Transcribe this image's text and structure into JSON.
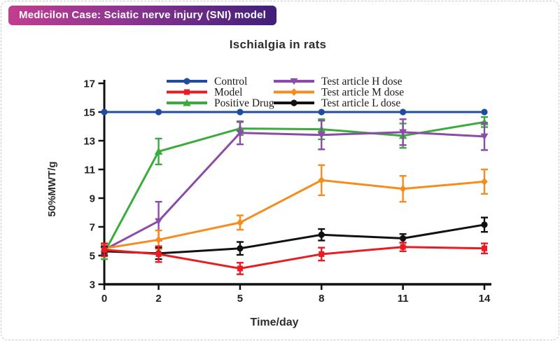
{
  "header": {
    "badge": "Medicilon Case: Sciatic nerve injury (SNI) model",
    "gradient_left": "#c03e90",
    "gradient_right": "#3f1f78",
    "text_color": "#ffffff"
  },
  "chart_data": {
    "type": "line",
    "title": "Ischialgia in rats",
    "xlabel": "Time/day",
    "ylabel": "50%MWT/g",
    "x": [
      0,
      2,
      5,
      8,
      11,
      14
    ],
    "xticks": [
      0,
      2,
      5,
      8,
      11,
      14
    ],
    "yticks": [
      3,
      5,
      7,
      9,
      11,
      13,
      15,
      17
    ],
    "xlim": [
      0,
      14
    ],
    "ylim": [
      3,
      17
    ],
    "grid": false,
    "error_bars": true,
    "legend_position": "top-inside-two-columns",
    "series": [
      {
        "name": "Control",
        "color": "#1f4ba0",
        "marker": "circle",
        "values": [
          15,
          15,
          15,
          15,
          15,
          15
        ],
        "errors": [
          0,
          0,
          0,
          0,
          0,
          0
        ]
      },
      {
        "name": "Model",
        "color": "#e91c23",
        "marker": "square",
        "values": [
          5.4,
          5.1,
          4.1,
          5.1,
          5.6,
          5.5
        ],
        "errors": [
          0.45,
          0.55,
          0.4,
          0.45,
          0.3,
          0.35
        ]
      },
      {
        "name": "Positive Drug",
        "color": "#39ac3b",
        "marker": "triangle-up",
        "values": [
          5.2,
          12.25,
          13.85,
          13.8,
          13.35,
          14.3
        ],
        "errors": [
          0.45,
          0.9,
          0.45,
          0.7,
          0.85,
          0.35
        ]
      },
      {
        "name": "Test article H dose",
        "color": "#8c4ba8",
        "marker": "triangle-down",
        "values": [
          5.4,
          7.4,
          13.55,
          13.4,
          13.6,
          13.3
        ],
        "errors": [
          0.3,
          1.35,
          0.8,
          1.0,
          0.9,
          0.95
        ]
      },
      {
        "name": "Test article M dose",
        "color": "#f78c1e",
        "marker": "diamond",
        "values": [
          5.5,
          6.1,
          7.3,
          10.25,
          9.65,
          10.15
        ],
        "errors": [
          0.3,
          0.65,
          0.5,
          1.05,
          0.9,
          0.85
        ]
      },
      {
        "name": "Test article L dose",
        "color": "#111111",
        "marker": "circle",
        "values": [
          5.3,
          5.15,
          5.5,
          6.45,
          6.2,
          7.15
        ],
        "errors": [
          0.3,
          0.4,
          0.45,
          0.4,
          0.3,
          0.5
        ]
      }
    ]
  }
}
